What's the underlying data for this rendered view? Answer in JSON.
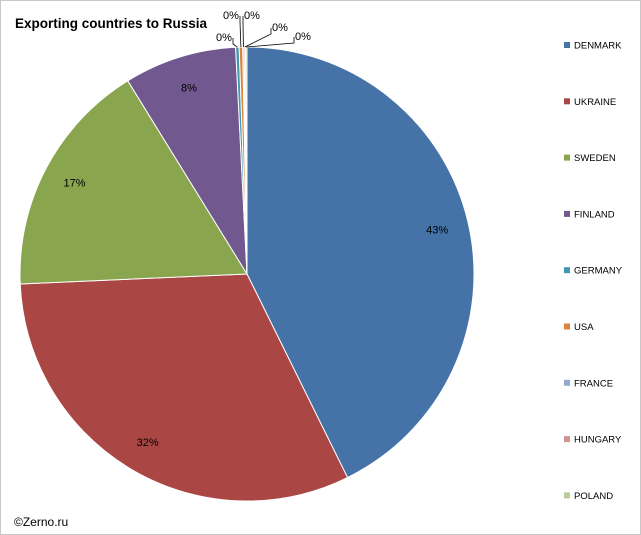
{
  "chart_data": {
    "type": "pie",
    "title": "Exporting countries to Russia",
    "source_credit": "©Zerno.ru",
    "legend_position": "right",
    "slices": [
      {
        "name": "DENMARK",
        "value": 42.7,
        "label": "43%",
        "color": "#4572A7"
      },
      {
        "name": "UKRAINE",
        "value": 31.6,
        "label": "32%",
        "color": "#AA4643"
      },
      {
        "name": "SWEDEN",
        "value": 16.9,
        "label": "17%",
        "color": "#89A54E"
      },
      {
        "name": "FINLAND",
        "value": 8.0,
        "label": "8%",
        "color": "#71588F"
      },
      {
        "name": "GERMANY",
        "value": 0.25,
        "label": "0%",
        "color": "#4198AF"
      },
      {
        "name": "USA",
        "value": 0.25,
        "label": "0%",
        "color": "#DB843D"
      },
      {
        "name": "FRANCE",
        "value": 0.1,
        "label": "0%",
        "color": "#93A9CF"
      },
      {
        "name": "HUNGARY",
        "value": 0.1,
        "label": "0%",
        "color": "#D19392"
      },
      {
        "name": "POLAND",
        "value": 0.1,
        "label": "0%",
        "color": "#B9CD96"
      }
    ]
  }
}
